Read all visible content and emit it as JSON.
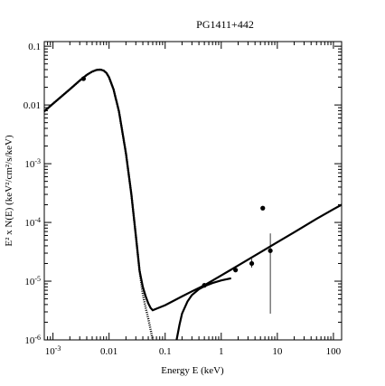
{
  "chart_data": {
    "type": "line",
    "title": "PG1411+442",
    "xlabel": "Energy E (keV)",
    "ylabel": "E² x N(E) (keV²/cm²/s/keV)",
    "x_scale": "log",
    "y_scale": "log",
    "xlim": [
      0.0007,
      140
    ],
    "ylim": [
      1e-06,
      0.12
    ],
    "grid": false,
    "x_ticks": [
      {
        "value": 0.001,
        "base": "10",
        "exp": "-3"
      },
      {
        "value": 0.01,
        "base": "0.01",
        "exp": ""
      },
      {
        "value": 0.1,
        "base": "0.1",
        "exp": ""
      },
      {
        "value": 1,
        "base": "1",
        "exp": ""
      },
      {
        "value": 10,
        "base": "10",
        "exp": ""
      },
      {
        "value": 100,
        "base": "100",
        "exp": ""
      }
    ],
    "y_ticks": [
      {
        "value": 1e-06,
        "base": "10",
        "exp": "-6"
      },
      {
        "value": 1e-05,
        "base": "10",
        "exp": "-5"
      },
      {
        "value": 0.0001,
        "base": "10",
        "exp": "-4"
      },
      {
        "value": 0.001,
        "base": "10",
        "exp": "-3"
      },
      {
        "value": 0.01,
        "base": "0.01",
        "exp": ""
      },
      {
        "value": 0.1,
        "base": "0.1",
        "exp": ""
      }
    ],
    "series": [
      {
        "style": "dotted",
        "x": [
          0.0007,
          0.001,
          0.002,
          0.003,
          0.004,
          0.005,
          0.006,
          0.007,
          0.008,
          0.009,
          0.01,
          0.012,
          0.015,
          0.02,
          0.025,
          0.03,
          0.035,
          0.04,
          0.045,
          0.05,
          0.055,
          0.06
        ],
        "y": [
          0.0078,
          0.0105,
          0.0185,
          0.026,
          0.0325,
          0.037,
          0.0395,
          0.04,
          0.0385,
          0.035,
          0.0295,
          0.0185,
          0.0078,
          0.0015,
          0.0003,
          6e-05,
          1.5e-05,
          6e-06,
          3.5e-06,
          2.3e-06,
          1.5e-06,
          1e-06
        ]
      },
      {
        "style": "solid",
        "x": [
          0.0007,
          0.001,
          0.002,
          0.003,
          0.004,
          0.005,
          0.006,
          0.007,
          0.008,
          0.009,
          0.01,
          0.012,
          0.015,
          0.02,
          0.025,
          0.03,
          0.035,
          0.04,
          0.045,
          0.05,
          0.055,
          0.06,
          0.07,
          0.1,
          0.2,
          0.3,
          0.5,
          1,
          2,
          5,
          10,
          20,
          50,
          100,
          140
        ],
        "y": [
          0.0078,
          0.0105,
          0.0185,
          0.026,
          0.0325,
          0.037,
          0.0395,
          0.04,
          0.0385,
          0.035,
          0.0295,
          0.0185,
          0.0078,
          0.0015,
          0.0003,
          6e-05,
          1.5e-05,
          8e-06,
          5.5e-06,
          4.2e-06,
          3.5e-06,
          3.2e-06,
          3.4e-06,
          3.9e-06,
          5.5e-06,
          6.7e-06,
          8.5e-06,
          1.25e-05,
          1.85e-05,
          3.1e-05,
          4.6e-05,
          6.8e-05,
          0.000115,
          0.000168,
          0.0002
        ]
      },
      {
        "style": "solid",
        "x": [
          0.16,
          0.18,
          0.2,
          0.25,
          0.3,
          0.4,
          0.5,
          0.7,
          1,
          1.5
        ],
        "y": [
          1e-06,
          1.8e-06,
          2.8e-06,
          4.5e-06,
          5.8e-06,
          7.3e-06,
          8.2e-06,
          9.3e-06,
          1.03e-05,
          1.12e-05
        ]
      }
    ],
    "points": [
      {
        "x": 0.0035,
        "y": 0.028,
        "ylo": 0.028,
        "yhi": 0.028
      },
      {
        "x": 0.5,
        "y": 8.5e-06,
        "ylo": 8.2e-06,
        "yhi": 8.8e-06
      },
      {
        "x": 1.8,
        "y": 1.55e-05,
        "ylo": 1.42e-05,
        "yhi": 1.68e-05
      },
      {
        "x": 3.5,
        "y": 2e-05,
        "ylo": 1.7e-05,
        "yhi": 2.4e-05
      },
      {
        "x": 5.5,
        "y": 0.000175,
        "ylo": 0.000172,
        "yhi": 0.000178
      },
      {
        "x": 7.5,
        "y": 3.3e-05,
        "ylo": 2.8e-06,
        "yhi": 6.5e-05
      }
    ]
  }
}
